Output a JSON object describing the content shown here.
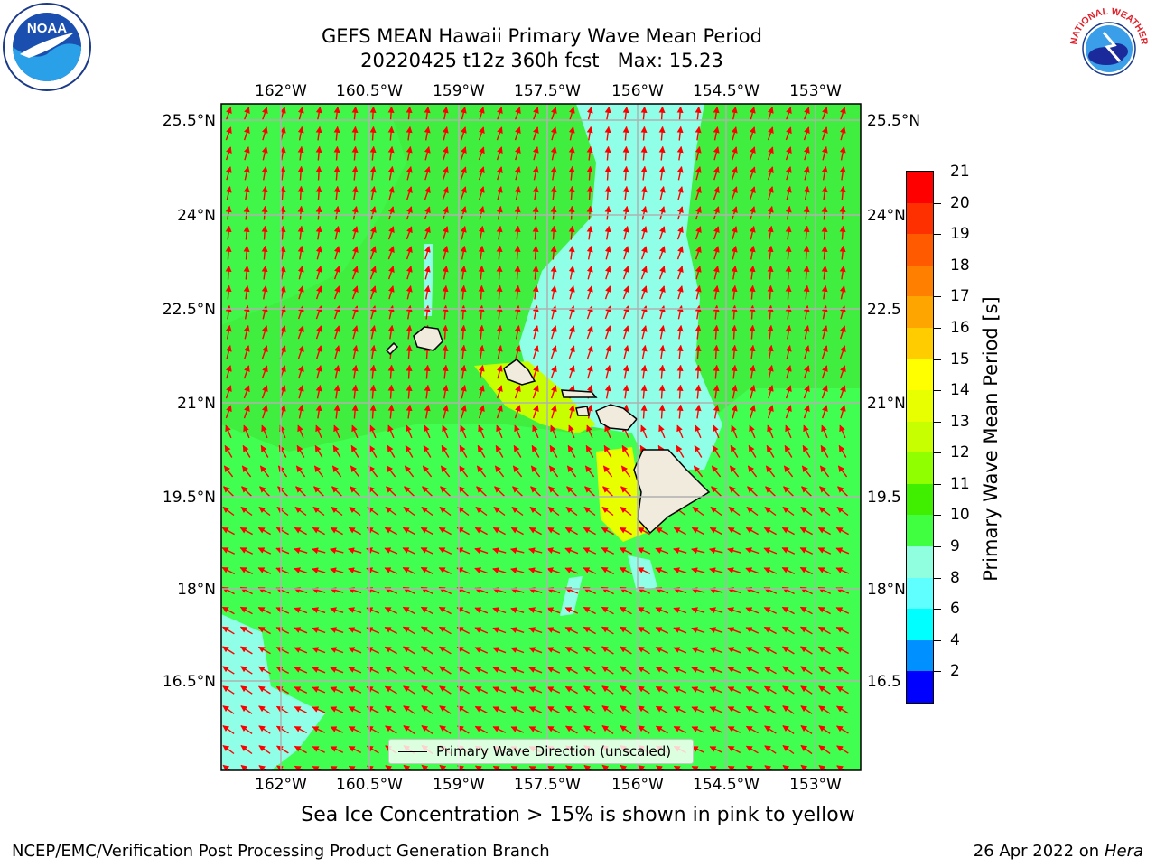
{
  "title": {
    "line1": "GEFS MEAN Hawaii Primary Wave Mean Period",
    "line2": "20220425 t12z 360h fcst   Max: 15.23"
  },
  "logos": {
    "left": "NOAA",
    "right_arc": "NATIONAL WEATHER SERVICE",
    "left_icon": "noaa-logo-icon",
    "right_icon": "nws-logo-icon"
  },
  "axes": {
    "lon_labels": [
      "162°W",
      "160.5°W",
      "159°W",
      "157.5°W",
      "156°W",
      "154.5°W",
      "153°W"
    ],
    "lat_labels": [
      "25.5°N",
      "24°N",
      "22.5°N",
      "21°N",
      "19.5°N",
      "18°N",
      "16.5°N"
    ],
    "lat_labels_right": [
      "25.5°N",
      "24°N",
      "22.5",
      "21°N",
      "19.5",
      "18°N",
      "16.5"
    ]
  },
  "colorbar": {
    "title": "Primary Wave Mean Period [s]",
    "ticks": [
      "21",
      "20",
      "19",
      "18",
      "17",
      "16",
      "15",
      "14",
      "13",
      "12",
      "11",
      "10",
      "9",
      "8",
      "6",
      "4",
      "2"
    ],
    "colors": [
      "#ff0000",
      "#ff3000",
      "#ff5a00",
      "#ff8000",
      "#ffa500",
      "#ffcc00",
      "#ffff00",
      "#e8ff00",
      "#c8ff00",
      "#90ff00",
      "#40ee00",
      "#40ff40",
      "#90ffe0",
      "#60ffff",
      "#00ffff",
      "#0090ff",
      "#0000ff"
    ]
  },
  "legend": {
    "label": "Primary Wave Direction (unscaled)"
  },
  "map": {
    "background": "#40ee40",
    "calm_color": "#90ffe8",
    "swell_color": "#40ff50",
    "island_fill": "#f0ebdc",
    "arrow_color": "#ff0000",
    "grid_color": "#b0b0b0"
  },
  "footer": {
    "note": "Sea Ice Concentration > 15% is shown in pink to yellow",
    "credit": "NCEP/EMC/Verification Post Processing Product Generation Branch",
    "date": "26 Apr 2022 on",
    "machine": "Hera"
  }
}
